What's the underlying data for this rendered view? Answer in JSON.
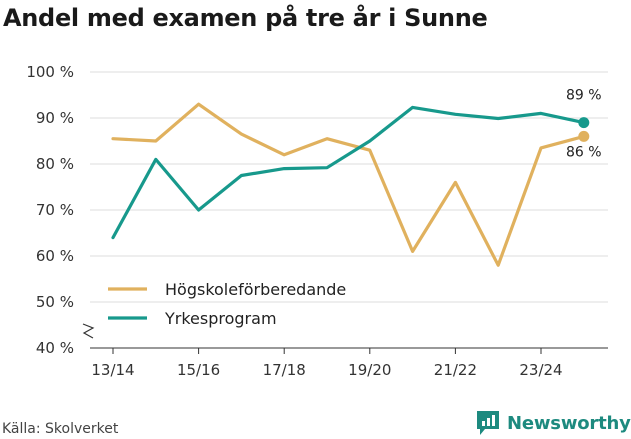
{
  "title": "Andel med examen på tre år i Sunne",
  "source": "Källa: Skolverket",
  "brand": "Newsworthy",
  "colors": {
    "accent": "#1d8a7f",
    "series1": "#e0b15e",
    "series2": "#17998c",
    "grid": "#dedede"
  },
  "chart_data": {
    "type": "line",
    "x": [
      "13/14",
      "14/15",
      "15/16",
      "16/17",
      "17/18",
      "18/19",
      "19/20",
      "20/21",
      "21/22",
      "22/23",
      "23/24",
      "24/25"
    ],
    "xticks": [
      "13/14",
      "15/16",
      "17/18",
      "19/20",
      "21/22",
      "23/24"
    ],
    "ylim": [
      40,
      100
    ],
    "yticks": [
      40,
      50,
      60,
      70,
      80,
      90,
      100
    ],
    "ytick_labels": [
      "40 %",
      "50 %",
      "60 %",
      "70 %",
      "80 %",
      "90 %",
      "100 %"
    ],
    "y_axis_break": true,
    "grid": true,
    "legend": "bottom-left",
    "series": [
      {
        "name": "Högskoleförberedande",
        "color": "#e0b15e",
        "values": [
          85.5,
          85,
          93,
          86.5,
          82,
          85.5,
          83,
          61,
          76,
          58,
          83.5,
          86
        ],
        "end_label": "86 %"
      },
      {
        "name": "Yrkesprogram",
        "color": "#17998c",
        "values": [
          64,
          81,
          70,
          77.5,
          79,
          79.2,
          85,
          92.3,
          90.8,
          89.9,
          91,
          89
        ],
        "end_label": "89 %"
      }
    ]
  }
}
